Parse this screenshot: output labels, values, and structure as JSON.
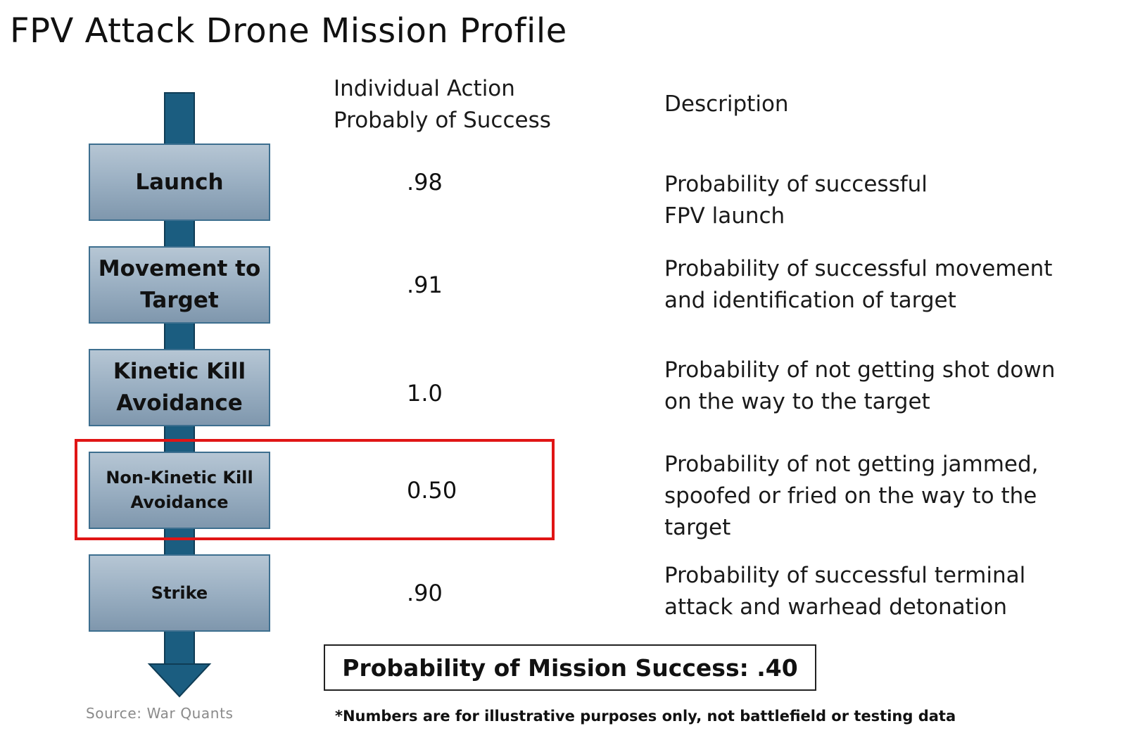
{
  "title": "FPV Attack Drone Mission Profile",
  "headers": {
    "probability": [
      "Individual Action",
      "Probably of Success"
    ],
    "description": "Description"
  },
  "steps": [
    {
      "label": [
        "Launch"
      ],
      "probability": ".98",
      "description": [
        "Probability of successful",
        "FPV launch"
      ]
    },
    {
      "label": [
        "Movement to",
        "Target"
      ],
      "probability": ".91",
      "description": [
        "Probability of successful movement",
        "and identification of target"
      ]
    },
    {
      "label": [
        "Kinetic Kill",
        "Avoidance"
      ],
      "probability": "1.0",
      "description": [
        "Probability of not getting shot down",
        "on the way to the target"
      ]
    },
    {
      "label": [
        "Non-Kinetic Kill",
        "Avoidance"
      ],
      "probability": "0.50",
      "description": [
        "Probability of not getting jammed,",
        "spoofed or fried on the way to the",
        "target"
      ],
      "highlighted": true
    },
    {
      "label": [
        "Strike"
      ],
      "probability": ".90",
      "description": [
        "Probability of successful terminal",
        "attack and warhead detonation"
      ]
    }
  ],
  "total": "Probability of Mission Success: .40",
  "source": "Source: War Quants",
  "footnote": "*Numbers are for illustrative purposes only, not battlefield or testing data",
  "colors": {
    "arrow": "#1b5d80",
    "box_border": "#3d6f8f",
    "highlight": "#e01515"
  }
}
